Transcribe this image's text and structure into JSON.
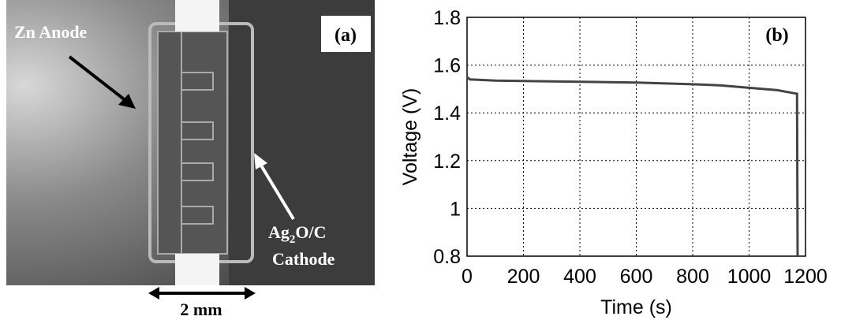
{
  "panel_a": {
    "label": "(a)",
    "anode_label": "Zn Anode",
    "cathode_formula": {
      "parts": [
        "Ag",
        "2",
        "O/C"
      ]
    },
    "cathode_label": "Cathode",
    "scale_bar": "2 mm"
  },
  "chart_data": {
    "type": "line",
    "panel_label": "(b)",
    "x_label": "Time (s)",
    "y_label": "Voltage (V)",
    "x": [
      0,
      10,
      100,
      400,
      600,
      800,
      900,
      1000,
      1100,
      1170,
      1172
    ],
    "values": [
      1.55,
      1.54,
      1.535,
      1.53,
      1.527,
      1.52,
      1.515,
      1.505,
      1.495,
      1.48,
      0.8
    ],
    "color": "#444444",
    "xlim": [
      0,
      1200
    ],
    "ylim": [
      0.8,
      1.8
    ],
    "xticks": [
      0,
      200,
      400,
      600,
      800,
      1000,
      1200
    ],
    "yticks": [
      0.8,
      1,
      1.2,
      1.4,
      1.6,
      1.8
    ],
    "grid": true
  }
}
